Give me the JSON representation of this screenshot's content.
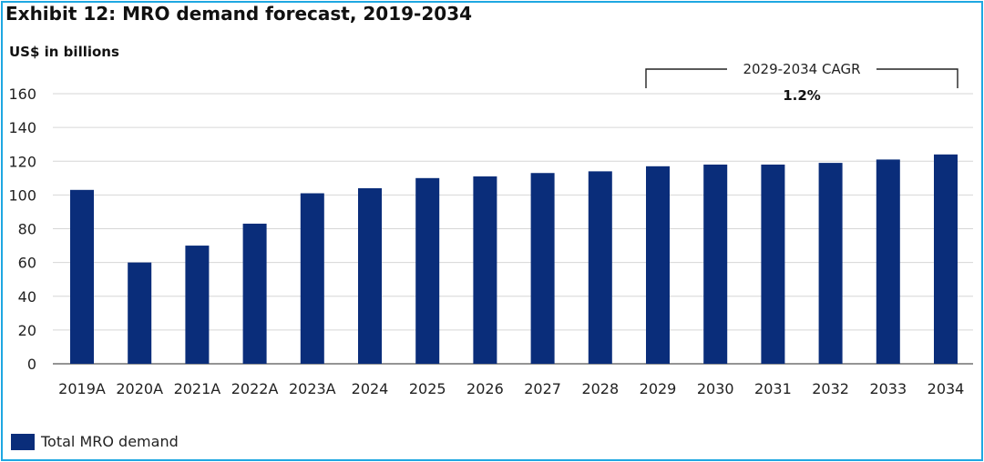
{
  "chart_data": {
    "type": "bar",
    "title": "Exhibit 12: MRO demand forecast, 2019-2034",
    "ylabel": "US$ in billions",
    "xlabel": "",
    "ylim": [
      0,
      160
    ],
    "yticks": [
      0,
      20,
      40,
      60,
      80,
      100,
      120,
      140,
      160
    ],
    "grid": true,
    "categories": [
      "2019A",
      "2020A",
      "2021A",
      "2022A",
      "2023A",
      "2024",
      "2025",
      "2026",
      "2027",
      "2028",
      "2029",
      "2030",
      "2031",
      "2032",
      "2033",
      "2034"
    ],
    "series": [
      {
        "name": "Total MRO demand",
        "color": "#0a2d7a",
        "values": [
          103,
          60,
          70,
          83,
          101,
          104,
          110,
          111,
          113,
          114,
          117,
          118,
          118,
          119,
          121,
          124
        ]
      }
    ],
    "annotation": {
      "label": "2029-2034 CAGR",
      "value": "1.2%",
      "from": "2029",
      "to": "2034"
    },
    "legend": {
      "position": "bottom-left",
      "entries": [
        "Total MRO demand"
      ]
    }
  }
}
